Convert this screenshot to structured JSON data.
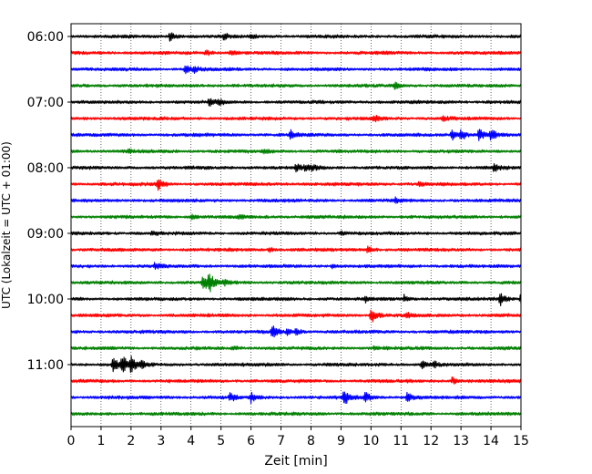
{
  "chart_data": {
    "type": "line",
    "title": "",
    "xlabel": "Zeit  [min]",
    "ylabel": "UTC (Lokalzeit = UTC + 01:00)",
    "xlim": [
      0,
      15
    ],
    "x_ticks": [
      "0",
      "1",
      "2",
      "3",
      "4",
      "5",
      "6",
      "7",
      "8",
      "9",
      "10",
      "11",
      "12",
      "13",
      "14",
      "15"
    ],
    "y_ticks": [
      "06:00",
      "07:00",
      "08:00",
      "09:00",
      "10:00",
      "11:00"
    ],
    "grid": "vertical dotted",
    "trace_colors": [
      "#000000",
      "#ff0000",
      "#0000ff",
      "#008000"
    ],
    "traces_per_hour": 4,
    "minutes_per_trace": 15,
    "start_time": "06:00",
    "series": [
      {
        "start": "06:00",
        "color": "#000000",
        "events": [
          {
            "t": 3.3,
            "amp": 5
          },
          {
            "t": 5.1,
            "amp": 3
          },
          {
            "t": 6.0,
            "amp": 2
          }
        ]
      },
      {
        "start": "06:15",
        "color": "#ff0000",
        "events": [
          {
            "t": 4.5,
            "amp": 3
          },
          {
            "t": 5.3,
            "amp": 3
          }
        ]
      },
      {
        "start": "06:30",
        "color": "#0000ff",
        "events": [
          {
            "t": 3.8,
            "amp": 4
          },
          {
            "t": 4.1,
            "amp": 3
          }
        ]
      },
      {
        "start": "06:45",
        "color": "#008000",
        "events": [
          {
            "t": 10.8,
            "amp": 3
          }
        ]
      },
      {
        "start": "07:00",
        "color": "#000000",
        "events": [
          {
            "t": 4.6,
            "amp": 4
          },
          {
            "t": 4.9,
            "amp": 3
          }
        ]
      },
      {
        "start": "07:15",
        "color": "#ff0000",
        "events": [
          {
            "t": 10.1,
            "amp": 4
          },
          {
            "t": 12.4,
            "amp": 3
          }
        ]
      },
      {
        "start": "07:30",
        "color": "#0000ff",
        "events": [
          {
            "t": 7.3,
            "amp": 5
          },
          {
            "t": 12.7,
            "amp": 7
          },
          {
            "t": 13.0,
            "amp": 6
          },
          {
            "t": 13.6,
            "amp": 7
          },
          {
            "t": 14.0,
            "amp": 6
          }
        ]
      },
      {
        "start": "07:45",
        "color": "#008000",
        "events": [
          {
            "t": 1.9,
            "amp": 2
          },
          {
            "t": 6.4,
            "amp": 2
          }
        ]
      },
      {
        "start": "08:00",
        "color": "#000000",
        "events": [
          {
            "t": 7.5,
            "amp": 4
          },
          {
            "t": 7.8,
            "amp": 3
          },
          {
            "t": 8.0,
            "amp": 3
          },
          {
            "t": 14.1,
            "amp": 4
          }
        ]
      },
      {
        "start": "08:15",
        "color": "#ff0000",
        "events": [
          {
            "t": 2.9,
            "amp": 6
          },
          {
            "t": 11.6,
            "amp": 2
          }
        ]
      },
      {
        "start": "08:30",
        "color": "#0000ff",
        "events": [
          {
            "t": 10.8,
            "amp": 3
          }
        ]
      },
      {
        "start": "08:45",
        "color": "#008000",
        "events": [
          {
            "t": 4.0,
            "amp": 2
          },
          {
            "t": 5.6,
            "amp": 2
          }
        ]
      },
      {
        "start": "09:00",
        "color": "#000000",
        "events": [
          {
            "t": 2.7,
            "amp": 2
          },
          {
            "t": 9.0,
            "amp": 2
          }
        ]
      },
      {
        "start": "09:15",
        "color": "#ff0000",
        "events": [
          {
            "t": 6.6,
            "amp": 3
          },
          {
            "t": 9.9,
            "amp": 3
          }
        ]
      },
      {
        "start": "09:30",
        "color": "#0000ff",
        "events": [
          {
            "t": 2.8,
            "amp": 4
          },
          {
            "t": 8.7,
            "amp": 2
          }
        ]
      },
      {
        "start": "09:45",
        "color": "#008000",
        "events": [
          {
            "t": 4.4,
            "amp": 9
          },
          {
            "t": 4.6,
            "amp": 10
          },
          {
            "t": 5.1,
            "amp": 3
          }
        ]
      },
      {
        "start": "10:00",
        "color": "#000000",
        "events": [
          {
            "t": 9.8,
            "amp": 3
          },
          {
            "t": 11.1,
            "amp": 4
          },
          {
            "t": 14.3,
            "amp": 7
          },
          {
            "t": 15.0,
            "amp": 9
          }
        ]
      },
      {
        "start": "10:15",
        "color": "#ff0000",
        "events": [
          {
            "t": 10.0,
            "amp": 9
          },
          {
            "t": 11.2,
            "amp": 3
          }
        ]
      },
      {
        "start": "10:30",
        "color": "#0000ff",
        "events": [
          {
            "t": 6.7,
            "amp": 9
          },
          {
            "t": 7.2,
            "amp": 4
          },
          {
            "t": 7.5,
            "amp": 3
          }
        ]
      },
      {
        "start": "10:45",
        "color": "#008000",
        "events": [
          {
            "t": 5.4,
            "amp": 2
          },
          {
            "t": 10.1,
            "amp": 2
          }
        ]
      },
      {
        "start": "11:00",
        "color": "#000000",
        "events": [
          {
            "t": 1.4,
            "amp": 9
          },
          {
            "t": 1.7,
            "amp": 10
          },
          {
            "t": 2.0,
            "amp": 8
          },
          {
            "t": 2.3,
            "amp": 4
          },
          {
            "t": 11.7,
            "amp": 5
          },
          {
            "t": 12.1,
            "amp": 3
          }
        ]
      },
      {
        "start": "11:15",
        "color": "#ff0000",
        "events": [
          {
            "t": 12.7,
            "amp": 4
          }
        ]
      },
      {
        "start": "11:30",
        "color": "#0000ff",
        "events": [
          {
            "t": 5.3,
            "amp": 5
          },
          {
            "t": 6.0,
            "amp": 5
          },
          {
            "t": 9.1,
            "amp": 10
          },
          {
            "t": 9.8,
            "amp": 6
          },
          {
            "t": 11.2,
            "amp": 6
          }
        ]
      },
      {
        "start": "11:45",
        "color": "#008000",
        "events": []
      }
    ]
  }
}
